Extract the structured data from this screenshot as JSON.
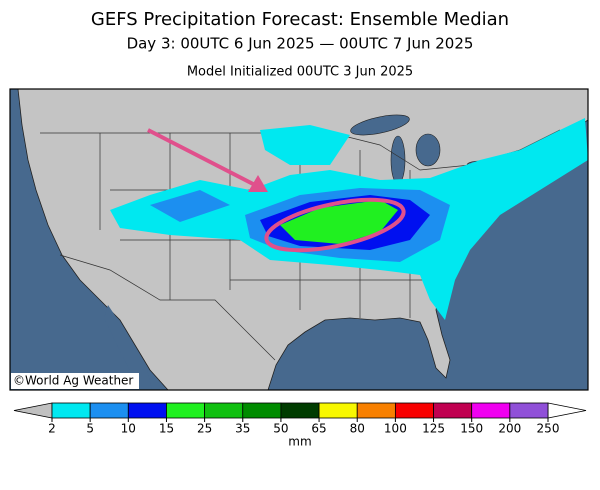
{
  "header": {
    "title": "GEFS Precipitation Forecast: Ensemble Median",
    "subtitle": "Day 3: 00UTC 6 Jun 2025 — 00UTC 7 Jun 2025",
    "init": "Model Initialized 00UTC 3 Jun 2025"
  },
  "map": {
    "credit": "©World Ag Weather"
  },
  "colorbar": {
    "levels": [
      2,
      5,
      10,
      15,
      25,
      35,
      50,
      65,
      80,
      100,
      125,
      150,
      200,
      250
    ],
    "colors": [
      "#00e8f0",
      "#1c8ff0",
      "#0010f0",
      "#20f020",
      "#10c010",
      "#008c00",
      "#003c00",
      "#f8f800",
      "#f88000",
      "#f80000",
      "#c00050",
      "#f000f0",
      "#9050d8"
    ],
    "under_color": "#c0c0c0",
    "over_color": "#ffffff",
    "unit": "mm"
  }
}
